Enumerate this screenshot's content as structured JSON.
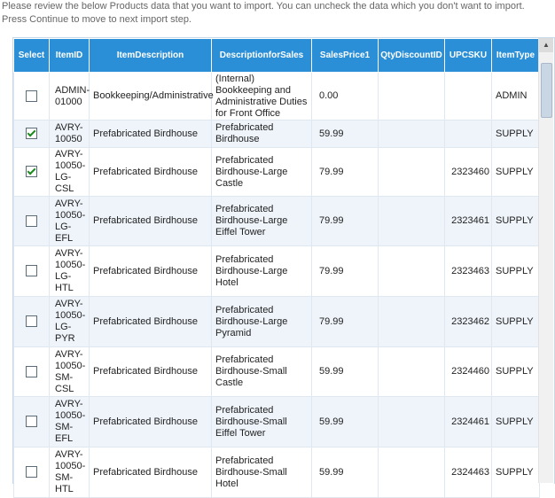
{
  "intro": {
    "line1": "Please review the below Products data that you want to import. You can uncheck the data which you don't want to import.",
    "line2": "Press Continue to move to next import step."
  },
  "columns": [
    "Select",
    "ItemID",
    "ItemDescription",
    "DescriptionforSales",
    "SalesPrice1",
    "QtyDiscountID",
    "UPCSKU",
    "ItemType"
  ],
  "rows": [
    {
      "checked": false,
      "item_id": "ADMIN-01000",
      "item_description": "Bookkeeping/Administrative",
      "description_for_sales": "(Internal) Bookkeeping and Administrative Duties for Front Office",
      "sales_price": "0.00",
      "qty_discount_id": "",
      "upc_sku": "",
      "item_type": "ADMIN"
    },
    {
      "checked": true,
      "item_id": "AVRY-10050",
      "item_description": "Prefabricated Birdhouse",
      "description_for_sales": "Prefabricated Birdhouse",
      "sales_price": "59.99",
      "qty_discount_id": "",
      "upc_sku": "",
      "item_type": "SUPPLY"
    },
    {
      "checked": true,
      "item_id": "AVRY-10050-LG-CSL",
      "item_description": "Prefabricated Birdhouse",
      "description_for_sales": "Prefabricated Birdhouse-Large Castle",
      "sales_price": "79.99",
      "qty_discount_id": "",
      "upc_sku": "2323460",
      "item_type": "SUPPLY"
    },
    {
      "checked": false,
      "item_id": "AVRY-10050-LG-EFL",
      "item_description": "Prefabricated Birdhouse",
      "description_for_sales": "Prefabricated Birdhouse-Large Eiffel Tower",
      "sales_price": "79.99",
      "qty_discount_id": "",
      "upc_sku": "2323461",
      "item_type": "SUPPLY"
    },
    {
      "checked": false,
      "item_id": "AVRY-10050-LG-HTL",
      "item_description": "Prefabricated Birdhouse",
      "description_for_sales": "Prefabricated Birdhouse-Large Hotel",
      "sales_price": "79.99",
      "qty_discount_id": "",
      "upc_sku": "2323463",
      "item_type": "SUPPLY"
    },
    {
      "checked": false,
      "item_id": "AVRY-10050-LG-PYR",
      "item_description": "Prefabricated Birdhouse",
      "description_for_sales": "Prefabricated Birdhouse-Large Pyramid",
      "sales_price": "79.99",
      "qty_discount_id": "",
      "upc_sku": "2323462",
      "item_type": "SUPPLY"
    },
    {
      "checked": false,
      "item_id": "AVRY-10050-SM-CSL",
      "item_description": "Prefabricated Birdhouse",
      "description_for_sales": "Prefabricated Birdhouse-Small Castle",
      "sales_price": "59.99",
      "qty_discount_id": "",
      "upc_sku": "2324460",
      "item_type": "SUPPLY"
    },
    {
      "checked": false,
      "item_id": "AVRY-10050-SM-EFL",
      "item_description": "Prefabricated Birdhouse",
      "description_for_sales": "Prefabricated Birdhouse-Small Eiffel Tower",
      "sales_price": "59.99",
      "qty_discount_id": "",
      "upc_sku": "2324461",
      "item_type": "SUPPLY"
    },
    {
      "checked": false,
      "item_id": "AVRY-10050-SM-HTL",
      "item_description": "Prefabricated Birdhouse",
      "description_for_sales": "Prefabricated Birdhouse-Small Hotel",
      "sales_price": "59.99",
      "qty_discount_id": "",
      "upc_sku": "2324463",
      "item_type": "SUPPLY"
    }
  ],
  "colors": {
    "header_bg": "#2a8fd6",
    "alt_row_bg": "#eef4fa",
    "check_color": "#1c8a1c"
  },
  "icons": {
    "checkbox": "checkbox-icon",
    "scroll_up": "scroll-up-arrow-icon"
  }
}
